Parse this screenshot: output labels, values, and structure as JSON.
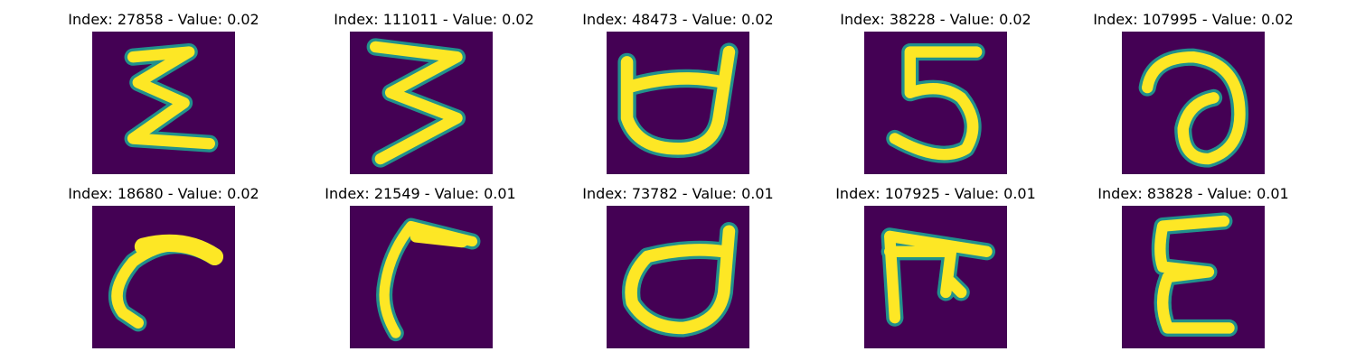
{
  "panels": [
    {
      "title": "Index: 27858 - Value: 0.02",
      "glyph": "zigzag-sigma"
    },
    {
      "title": "Index: 111011 - Value: 0.02",
      "glyph": "three-zigzag"
    },
    {
      "title": "Index: 48473 - Value: 0.02",
      "glyph": "cup-with-horns"
    },
    {
      "title": "Index: 38228 - Value: 0.02",
      "glyph": "digit-five"
    },
    {
      "title": "Index: 107995 - Value: 0.02",
      "glyph": "curl-loop"
    },
    {
      "title": "Index: 18680 - Value: 0.02",
      "glyph": "hook-curve"
    },
    {
      "title": "Index: 21549 - Value: 0.01",
      "glyph": "bent-stroke"
    },
    {
      "title": "Index: 73782 - Value: 0.01",
      "glyph": "open-bowl"
    },
    {
      "title": "Index: 107925 - Value: 0.01",
      "glyph": "gate-shape"
    },
    {
      "title": "Index: 83828 - Value: 0.01",
      "glyph": "epsilon-shape"
    }
  ],
  "colors": {
    "background": "#440154",
    "edge": "#21918c",
    "stroke": "#fde725"
  }
}
